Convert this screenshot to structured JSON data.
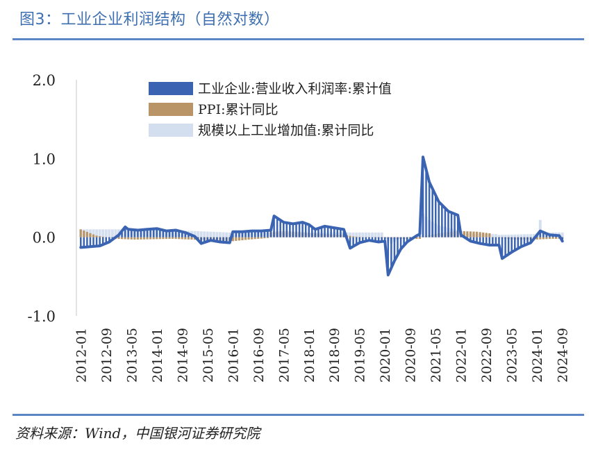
{
  "header": {
    "title": "图3：工业企业利润结构（自然对数）"
  },
  "footer": {
    "source": "资料来源：Wind，中国银河证券研究院"
  },
  "colors": {
    "profit": "#3a63b2",
    "ppi": "#b89466",
    "ip": "#d3deef",
    "rule": "#5b86c5",
    "axis": "#d9d9d9"
  },
  "chart_data": {
    "type": "bar",
    "title": "",
    "ylim": [
      -1.0,
      2.0
    ],
    "yticks": [
      "2.0",
      "1.0",
      "0.0",
      "-1.0"
    ],
    "ytick_values": [
      2.0,
      1.0,
      0.0,
      -1.0
    ],
    "xticks": [
      "2012-01",
      "2012-09",
      "2013-05",
      "2014-01",
      "2014-09",
      "2015-05",
      "2016-01",
      "2016-09",
      "2017-05",
      "2018-01",
      "2018-09",
      "2019-05",
      "2020-01",
      "2020-09",
      "2021-05",
      "2022-01",
      "2022-09",
      "2023-05",
      "2024-01",
      "2024-09"
    ],
    "legend_position": "top-left",
    "series": [
      {
        "name": "工业企业:营业收入利润率:累计值",
        "style": "bar+line",
        "color": "profit",
        "points": [
          [
            "2012-01",
            -0.13
          ],
          [
            "2012-04",
            -0.12
          ],
          [
            "2012-07",
            -0.11
          ],
          [
            "2012-10",
            -0.06
          ],
          [
            "2013-01",
            0.03
          ],
          [
            "2013-03",
            0.13
          ],
          [
            "2013-04",
            0.1
          ],
          [
            "2013-07",
            0.09
          ],
          [
            "2013-10",
            0.1
          ],
          [
            "2014-01",
            0.11
          ],
          [
            "2014-04",
            0.08
          ],
          [
            "2014-07",
            0.09
          ],
          [
            "2014-10",
            0.06
          ],
          [
            "2015-01",
            0.01
          ],
          [
            "2015-03",
            -0.08
          ],
          [
            "2015-06",
            -0.04
          ],
          [
            "2015-09",
            -0.06
          ],
          [
            "2015-12",
            -0.07
          ],
          [
            "2016-01",
            0.07
          ],
          [
            "2016-04",
            0.07
          ],
          [
            "2016-07",
            0.08
          ],
          [
            "2016-10",
            0.08
          ],
          [
            "2017-01",
            0.09
          ],
          [
            "2017-02",
            0.27
          ],
          [
            "2017-05",
            0.19
          ],
          [
            "2017-08",
            0.17
          ],
          [
            "2017-11",
            0.19
          ],
          [
            "2018-01",
            0.16
          ],
          [
            "2018-03",
            0.1
          ],
          [
            "2018-06",
            0.14
          ],
          [
            "2018-09",
            0.12
          ],
          [
            "2018-12",
            0.1
          ],
          [
            "2019-02",
            -0.14
          ],
          [
            "2019-05",
            -0.07
          ],
          [
            "2019-08",
            -0.04
          ],
          [
            "2019-11",
            -0.06
          ],
          [
            "2020-01",
            -0.05
          ],
          [
            "2020-02",
            -0.48
          ],
          [
            "2020-04",
            -0.3
          ],
          [
            "2020-06",
            -0.15
          ],
          [
            "2020-08",
            -0.06
          ],
          [
            "2020-11",
            0.02
          ],
          [
            "2020-12",
            0.04
          ],
          [
            "2021-01",
            1.02
          ],
          [
            "2021-03",
            0.7
          ],
          [
            "2021-06",
            0.45
          ],
          [
            "2021-09",
            0.33
          ],
          [
            "2021-12",
            0.28
          ],
          [
            "2022-01",
            0.03
          ],
          [
            "2022-04",
            -0.05
          ],
          [
            "2022-07",
            -0.08
          ],
          [
            "2022-10",
            -0.1
          ],
          [
            "2023-01",
            -0.1
          ],
          [
            "2023-02",
            -0.27
          ],
          [
            "2023-05",
            -0.19
          ],
          [
            "2023-08",
            -0.12
          ],
          [
            "2023-11",
            -0.07
          ],
          [
            "2024-02",
            0.08
          ],
          [
            "2024-05",
            0.03
          ],
          [
            "2024-08",
            0.02
          ],
          [
            "2024-09",
            -0.05
          ]
        ]
      },
      {
        "name": "PPI:累计同比",
        "style": "bar",
        "color": "ppi",
        "points": [
          [
            "2012-01",
            0.1
          ],
          [
            "2012-06",
            0.02
          ],
          [
            "2012-12",
            -0.02
          ],
          [
            "2013-06",
            -0.03
          ],
          [
            "2014-06",
            -0.02
          ],
          [
            "2015-06",
            -0.04
          ],
          [
            "2016-01",
            -0.05
          ],
          [
            "2016-06",
            -0.03
          ],
          [
            "2016-12",
            -0.01
          ],
          [
            "2017-01",
            0.07
          ],
          [
            "2017-06",
            0.08
          ],
          [
            "2017-12",
            0.06
          ],
          [
            "2018-06",
            0.04
          ],
          [
            "2018-12",
            0.03
          ],
          [
            "2019-03",
            0.01
          ],
          [
            "2019-06",
            0.0
          ],
          [
            "2019-12",
            -0.01
          ],
          [
            "2020-06",
            -0.02
          ],
          [
            "2020-12",
            -0.02
          ],
          [
            "2021-01",
            0.01
          ],
          [
            "2021-06",
            0.05
          ],
          [
            "2021-12",
            0.08
          ],
          [
            "2022-06",
            0.07
          ],
          [
            "2022-10",
            0.05
          ],
          [
            "2022-11",
            0.0
          ],
          [
            "2023-06",
            -0.03
          ],
          [
            "2023-12",
            -0.03
          ],
          [
            "2024-06",
            -0.02
          ],
          [
            "2024-09",
            -0.02
          ]
        ]
      },
      {
        "name": "规模以上工业增加值:累计同比",
        "style": "bar",
        "color": "ip",
        "points": [
          [
            "2012-01",
            0.1
          ],
          [
            "2012-12",
            0.1
          ],
          [
            "2013-12",
            0.09
          ],
          [
            "2014-12",
            0.08
          ],
          [
            "2015-12",
            0.06
          ],
          [
            "2016-12",
            0.06
          ],
          [
            "2017-12",
            0.06
          ],
          [
            "2018-12",
            0.06
          ],
          [
            "2019-12",
            0.06
          ],
          [
            "2020-01",
            -0.02
          ],
          [
            "2020-03",
            -0.08
          ],
          [
            "2020-06",
            -0.01
          ],
          [
            "2020-12",
            0.02
          ],
          [
            "2021-01",
            0.3
          ],
          [
            "2021-03",
            0.22
          ],
          [
            "2021-06",
            0.15
          ],
          [
            "2021-12",
            0.09
          ],
          [
            "2022-01",
            0.06
          ],
          [
            "2022-06",
            0.04
          ],
          [
            "2022-12",
            0.04
          ],
          [
            "2023-01",
            0.03
          ],
          [
            "2023-12",
            0.04
          ],
          [
            "2024-01",
            0.05
          ],
          [
            "2024-02",
            0.22
          ],
          [
            "2024-03",
            0.06
          ],
          [
            "2024-09",
            0.06
          ]
        ]
      }
    ]
  }
}
